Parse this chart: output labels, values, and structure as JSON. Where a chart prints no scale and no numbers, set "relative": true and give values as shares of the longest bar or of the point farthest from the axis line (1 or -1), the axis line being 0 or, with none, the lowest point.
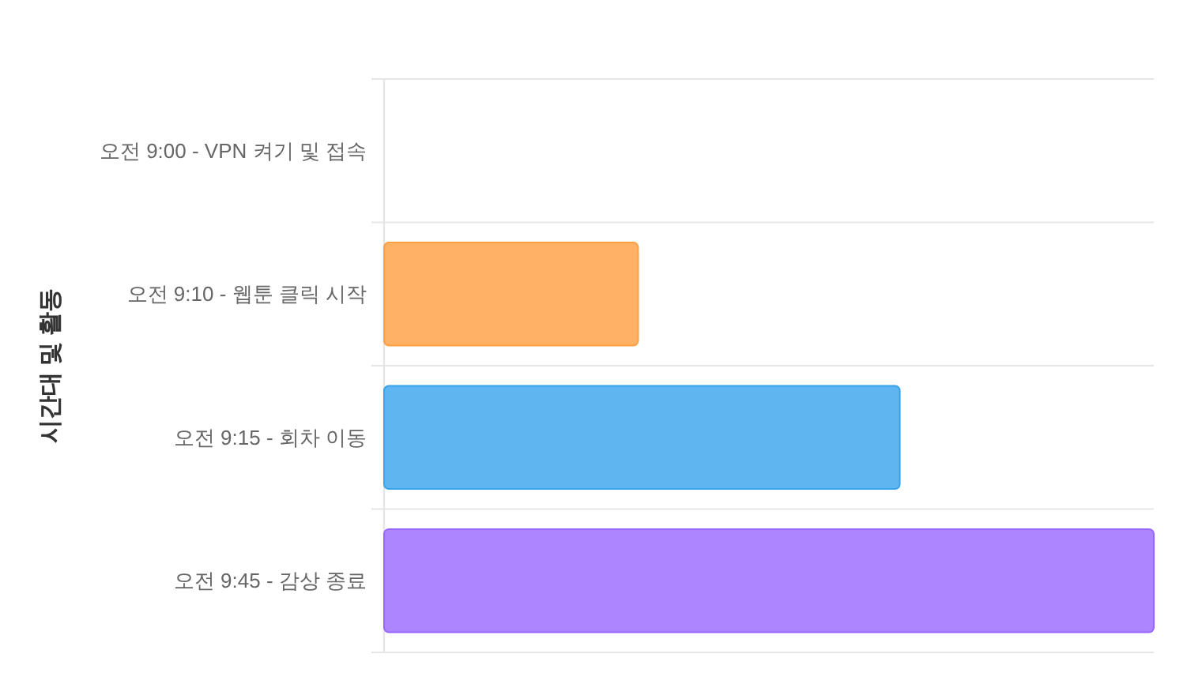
{
  "chart_data": {
    "type": "bar",
    "orientation": "horizontal",
    "ylabel": "시간대 및 활동",
    "categories": [
      "오전 9:00 - VPN 켜기 및 접속",
      "오전 9:10 - 웹툰 클릭 시작",
      "오전 9:15 - 회차 이동",
      "오전 9:45 - 감상 종료"
    ],
    "values": [
      0,
      0.33,
      0.67,
      1
    ],
    "colors": [
      null,
      "#ffb266",
      "#5eb5ef",
      "#ad85ff"
    ],
    "relative": true,
    "grid": "y",
    "tick_labels": "y"
  }
}
